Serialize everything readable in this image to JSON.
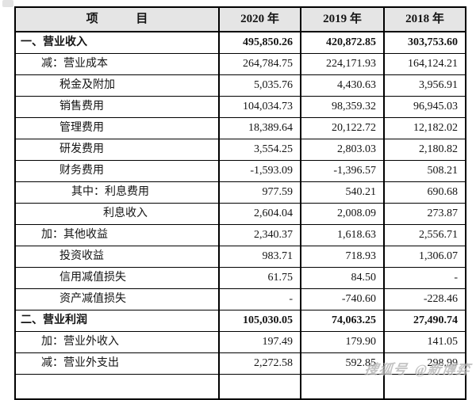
{
  "colors": {
    "header_bg": "#e5e5e5",
    "border": "#000000",
    "text": "#141414",
    "watermark": "#9e9e9e"
  },
  "table": {
    "header": {
      "item": "项 目",
      "years": [
        "2020 年",
        "2019 年",
        "2018 年"
      ]
    },
    "rows": [
      {
        "label": "一、营业收入",
        "indent": 0,
        "bold": true,
        "values": [
          "495,850.26",
          "420,872.85",
          "303,753.60"
        ]
      },
      {
        "label": "减：营业成本",
        "indent": 1,
        "bold": false,
        "values": [
          "264,784.75",
          "224,171.93",
          "164,124.21"
        ]
      },
      {
        "label": "税金及附加",
        "indent": 2,
        "bold": false,
        "values": [
          "5,035.76",
          "4,430.63",
          "3,956.91"
        ]
      },
      {
        "label": "销售费用",
        "indent": 2,
        "bold": false,
        "values": [
          "104,034.73",
          "98,359.32",
          "96,945.03"
        ]
      },
      {
        "label": "管理费用",
        "indent": 2,
        "bold": false,
        "values": [
          "18,389.64",
          "20,122.72",
          "12,182.02"
        ]
      },
      {
        "label": "研发费用",
        "indent": 2,
        "bold": false,
        "values": [
          "3,554.25",
          "2,803.03",
          "2,180.82"
        ]
      },
      {
        "label": "财务费用",
        "indent": 2,
        "bold": false,
        "values": [
          "-1,593.09",
          "-1,396.57",
          "508.21"
        ]
      },
      {
        "label": "其中：利息费用",
        "indent": 3,
        "bold": false,
        "values": [
          "977.59",
          "540.21",
          "690.68"
        ]
      },
      {
        "label": "利息收入",
        "indent": 4,
        "bold": false,
        "values": [
          "2,604.04",
          "2,008.09",
          "273.87"
        ]
      },
      {
        "label": "加：其他收益",
        "indent": 1,
        "bold": false,
        "values": [
          "2,340.37",
          "1,618.63",
          "2,556.71"
        ]
      },
      {
        "label": "投资收益",
        "indent": 2,
        "bold": false,
        "values": [
          "983.71",
          "718.93",
          "1,306.07"
        ]
      },
      {
        "label": "信用减值损失",
        "indent": 2,
        "bold": false,
        "values": [
          "61.75",
          "84.50",
          "-"
        ]
      },
      {
        "label": "资产减值损失",
        "indent": 2,
        "bold": false,
        "values": [
          "-",
          "-740.60",
          "-228.46"
        ]
      },
      {
        "label": "二、营业利润",
        "indent": 0,
        "bold": true,
        "values": [
          "105,030.05",
          "74,063.25",
          "27,490.74"
        ]
      },
      {
        "label": "加：营业外收入",
        "indent": 1,
        "bold": false,
        "values": [
          "197.49",
          "179.90",
          "141.05"
        ]
      },
      {
        "label": "减：营业外支出",
        "indent": 1,
        "bold": false,
        "values": [
          "2,272.58",
          "592.85",
          "298.99"
        ]
      }
    ]
  },
  "watermark": {
    "platform": "搜狐号",
    "handle": "@新博弈"
  }
}
